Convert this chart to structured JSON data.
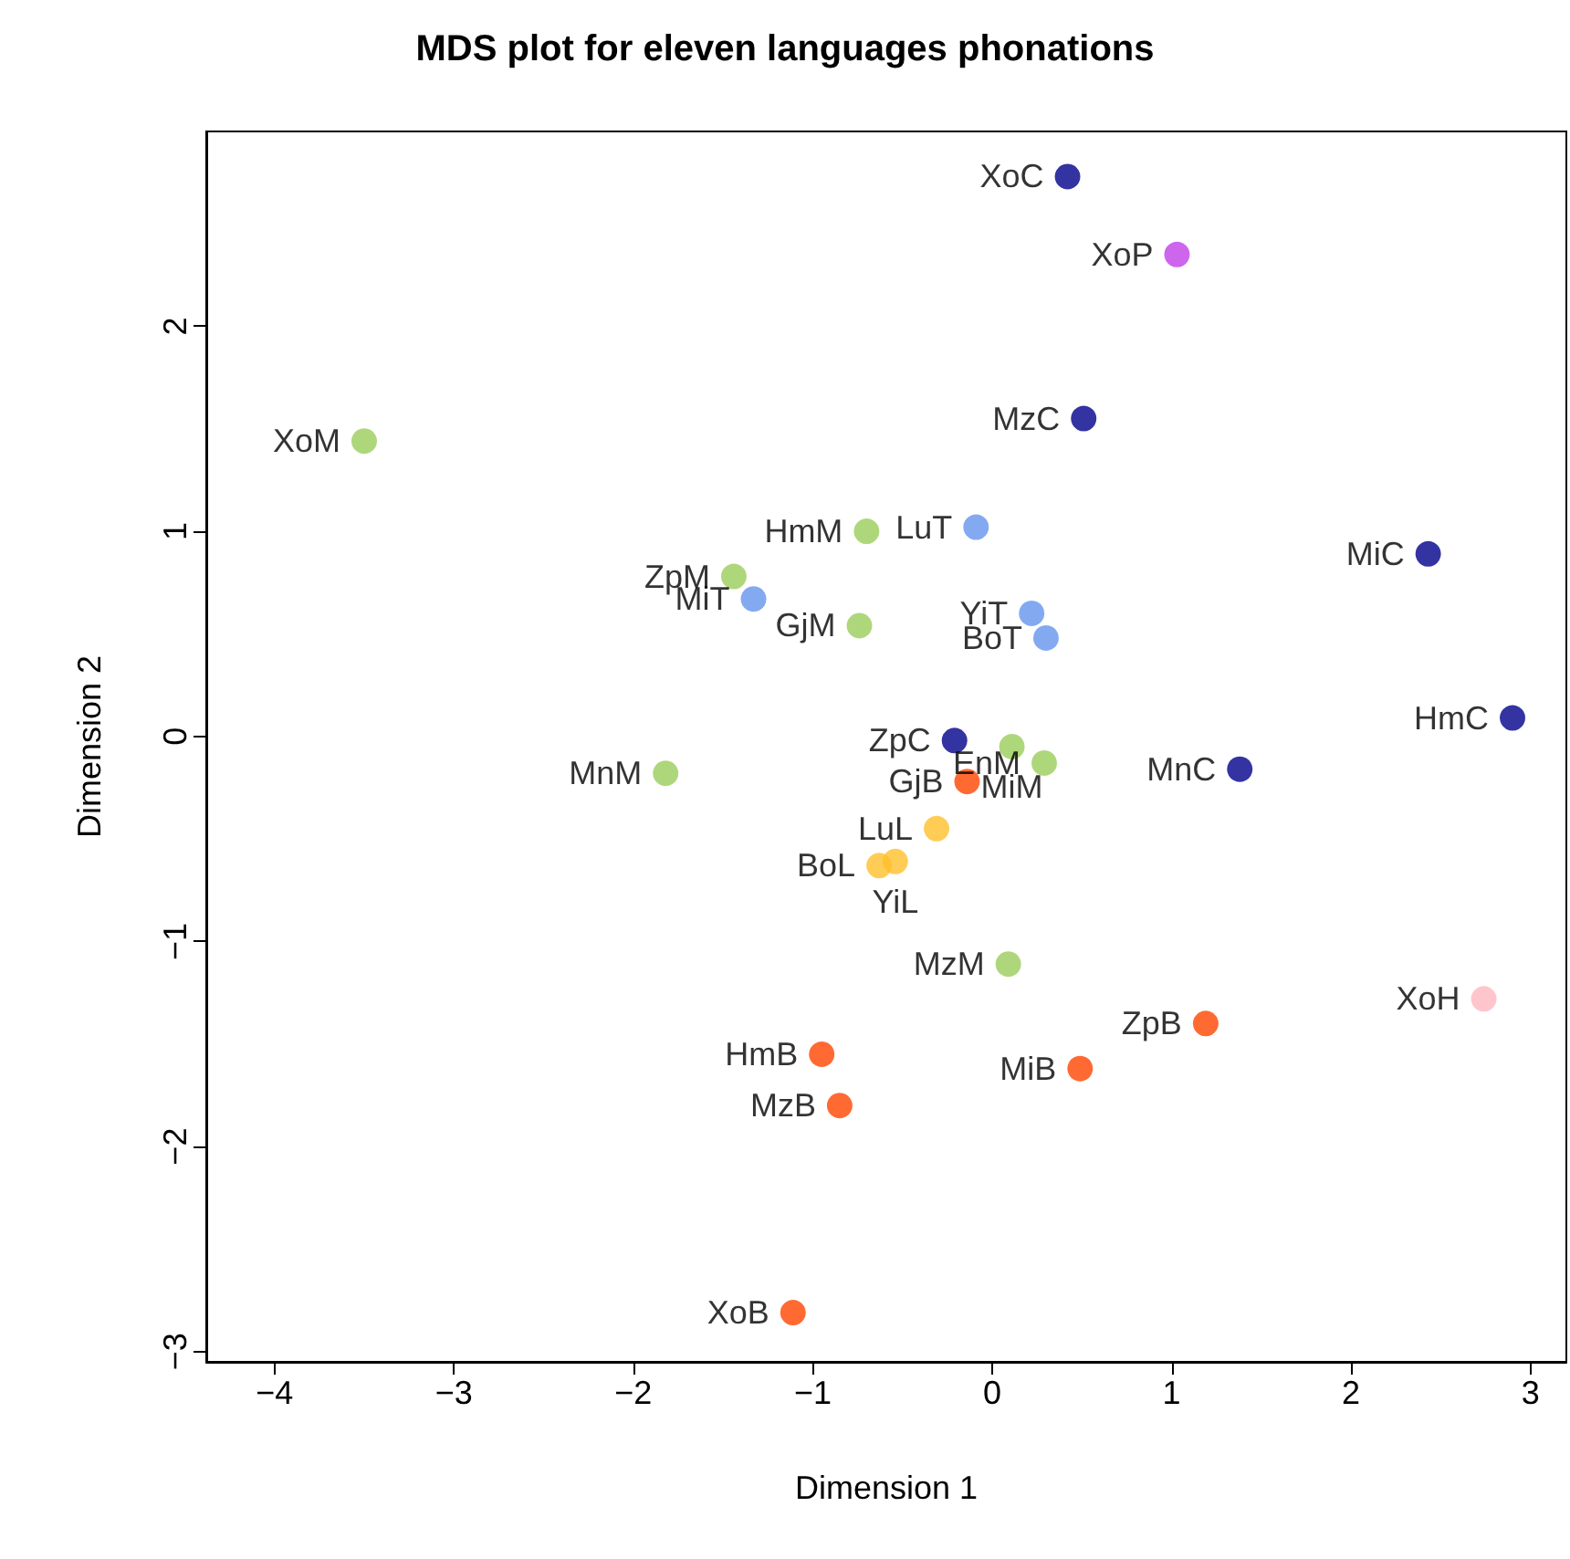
{
  "chart_data": {
    "type": "scatter",
    "title": "MDS plot for eleven languages phonations",
    "xlabel": "Dimension 1",
    "ylabel": "Dimension 2",
    "x": [
      0.42,
      1.03,
      0.51,
      -3.5,
      2.43,
      -0.7,
      -0.09,
      -1.44,
      -1.33,
      -0.74,
      0.22,
      0.3,
      2.9,
      -0.21,
      0.11,
      0.29,
      -1.82,
      1.38,
      -0.14,
      -0.31,
      -0.54,
      -0.63,
      0.09,
      2.74,
      1.19,
      -0.95,
      0.49,
      -0.85,
      -1.11
    ],
    "values": [
      2.73,
      2.35,
      1.55,
      1.44,
      0.89,
      1.0,
      1.02,
      0.78,
      0.67,
      0.54,
      0.6,
      0.48,
      0.09,
      -0.02,
      -0.05,
      -0.13,
      -0.18,
      -0.16,
      -0.22,
      -0.45,
      -0.61,
      -0.63,
      -1.11,
      -1.28,
      -1.4,
      -1.55,
      -1.62,
      -1.8,
      -2.81
    ],
    "value_labels": [
      "XoC",
      "XoP",
      "MzC",
      "XoM",
      "MiC",
      "HmM",
      "LuT",
      "ZpM",
      "MiT",
      "GjM",
      "YiT",
      "BoT",
      "HmC",
      "ZpC",
      "MiM",
      "EnM",
      "MnM",
      "MnC",
      "GjB",
      "LuL",
      "YiL",
      "BoL",
      "MzM",
      "XoH",
      "ZpB",
      "HmB",
      "MiB",
      "MzB",
      "XoB"
    ],
    "colors": [
      "#00008b",
      "#c13ee8",
      "#00008b",
      "#9acd5a",
      "#00008b",
      "#9acd5a",
      "#6495ed",
      "#9acd5a",
      "#6495ed",
      "#9acd5a",
      "#6495ed",
      "#6495ed",
      "#00008b",
      "#00008b",
      "#9acd5a",
      "#9acd5a",
      "#9acd5a",
      "#00008b",
      "#ff4500",
      "#ffbf2a",
      "#ffbf2a",
      "#ffbf2a",
      "#9acd5a",
      "#ffb6c1",
      "#ff4500",
      "#ff4500",
      "#ff4500",
      "#ff4500",
      "#ff4500"
    ],
    "xlim": [
      -4.38,
      3.2
    ],
    "ylim": [
      -3.05,
      2.95
    ],
    "xticks": [
      -4,
      -3,
      -2,
      -1,
      0,
      1,
      2,
      3
    ],
    "yticks": [
      -3,
      -2,
      -1,
      0,
      1,
      2
    ],
    "grid": false,
    "marker": "circle"
  }
}
